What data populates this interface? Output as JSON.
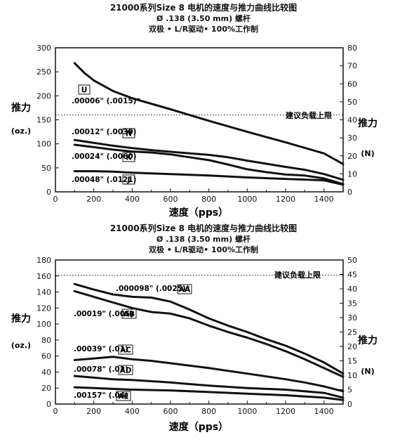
{
  "charts": [
    {
      "header": {
        "line1": "21000系列Size 8 电机的速度与推力曲线比较图",
        "line2": "Ø .138 (3.50 mm) 螺杆",
        "line3": "双极 • L/R驱动• 100%工作制"
      },
      "ylabel_left": "推力",
      "ylabel_left_unit": "(oz.)",
      "ylabel_right": "推力",
      "ylabel_right_unit": "(N)",
      "xlabel": "速度（pps）",
      "limit_label": "建议负载上限",
      "annotations": [
        {
          "text": ".00006\" (.0015)*",
          "box": "U"
        },
        {
          "text": ".00012\" (.0030)",
          "box": "N"
        },
        {
          "text": ".00024\" (.0060)",
          "box": "K"
        },
        {
          "text": ".00048\" (.0121)",
          "box": "J"
        }
      ]
    },
    {
      "header": {
        "line1": "21000系列Size 8 电机的速度与推力曲线比较图",
        "line2": "Ø .138 (3.50 mm) 螺杆",
        "line3": "双极 • L/R驱动• 100%工作制"
      },
      "ylabel_left": "推力",
      "ylabel_left_unit": "(oz.)",
      "ylabel_right": "推力",
      "ylabel_right_unit": "(N)",
      "xlabel": "速度（pps）",
      "limit_label": "建议负载上限",
      "annotations": [
        {
          "text": ".000098\" (.0025)*",
          "box": "AA"
        },
        {
          "text": ".00019\" (.005)",
          "box": "AB"
        },
        {
          "text": ".00039\" (.01)",
          "box": "AC"
        },
        {
          "text": ".00078\" (.02)",
          "box": "AD"
        },
        {
          "text": ".00157\" (.04)",
          "box": "AE"
        }
      ]
    }
  ],
  "chart_data": [
    {
      "type": "line",
      "xlim": [
        0,
        1500
      ],
      "ylim_left": [
        0,
        300
      ],
      "ylim_right": [
        0,
        80
      ],
      "limit_value": 160,
      "x_ticks": [
        0,
        200,
        400,
        600,
        800,
        1000,
        1200,
        1400
      ],
      "y_ticks_left": [
        0,
        50,
        100,
        150,
        200,
        250,
        300
      ],
      "y_ticks_right": [
        0,
        10,
        20,
        30,
        40,
        50,
        60,
        70,
        80
      ],
      "series": [
        {
          "name": "U",
          "x": [
            100,
            150,
            200,
            300,
            400,
            600,
            800,
            1000,
            1200,
            1400,
            1500
          ],
          "y": [
            268,
            248,
            232,
            210,
            195,
            172,
            148,
            125,
            103,
            80,
            58
          ]
        },
        {
          "name": "N",
          "x": [
            100,
            200,
            300,
            400,
            500,
            700,
            800,
            900,
            1000,
            1200,
            1300,
            1400,
            1500
          ],
          "y": [
            108,
            102,
            96,
            91,
            87,
            80,
            77,
            72,
            65,
            52,
            46,
            37,
            25
          ]
        },
        {
          "name": "K",
          "x": [
            100,
            200,
            300,
            400,
            500,
            600,
            700,
            800,
            900,
            1000,
            1100,
            1200,
            1300,
            1400,
            1500
          ],
          "y": [
            98,
            93,
            88,
            84,
            82,
            78,
            72,
            66,
            57,
            47,
            41,
            36,
            34,
            28,
            16
          ]
        },
        {
          "name": "J",
          "x": [
            100,
            200,
            300,
            400,
            600,
            800,
            1000,
            1200,
            1400,
            1500
          ],
          "y": [
            43,
            43,
            42,
            40,
            37,
            34,
            30,
            27,
            24,
            15
          ]
        }
      ]
    },
    {
      "type": "line",
      "xlim": [
        0,
        1500
      ],
      "ylim_left": [
        0,
        180
      ],
      "ylim_right": [
        0,
        50
      ],
      "limit_value": 161,
      "x_ticks": [
        0,
        200,
        400,
        600,
        800,
        1000,
        1200,
        1400
      ],
      "y_ticks_left": [
        0,
        20,
        40,
        60,
        80,
        100,
        120,
        140,
        160,
        180
      ],
      "y_ticks_right": [
        0,
        5,
        10,
        15,
        20,
        25,
        30,
        35,
        40,
        45,
        50
      ],
      "series": [
        {
          "name": "AA",
          "x": [
            100,
            200,
            300,
            400,
            500,
            600,
            700,
            800,
            900,
            1000,
            1100,
            1200,
            1300,
            1400,
            1500
          ],
          "y": [
            150,
            143,
            137,
            134,
            133,
            128,
            118,
            107,
            98,
            90,
            81,
            73,
            63,
            52,
            38
          ]
        },
        {
          "name": "AB",
          "x": [
            100,
            200,
            300,
            400,
            500,
            600,
            700,
            800,
            900,
            1000,
            1100,
            1200,
            1300,
            1400,
            1500
          ],
          "y": [
            141,
            134,
            127,
            120,
            115,
            113,
            107,
            98,
            90,
            83,
            75,
            66,
            56,
            45,
            34
          ]
        },
        {
          "name": "AC",
          "x": [
            100,
            200,
            300,
            400,
            500,
            600,
            800,
            1000,
            1200,
            1300,
            1400,
            1500
          ],
          "y": [
            55,
            57,
            59,
            56,
            54,
            51,
            45,
            38,
            31,
            27,
            22,
            16
          ]
        },
        {
          "name": "AD",
          "x": [
            100,
            200,
            300,
            400,
            600,
            800,
            1000,
            1200,
            1400,
            1500
          ],
          "y": [
            35,
            33,
            31,
            30,
            27,
            23,
            20,
            18,
            14,
            8
          ]
        },
        {
          "name": "AE",
          "x": [
            100,
            200,
            300,
            400,
            600,
            800,
            1000,
            1200,
            1400,
            1500
          ],
          "y": [
            21,
            20,
            19,
            18,
            17,
            15,
            13,
            11,
            8,
            5
          ]
        }
      ]
    }
  ]
}
